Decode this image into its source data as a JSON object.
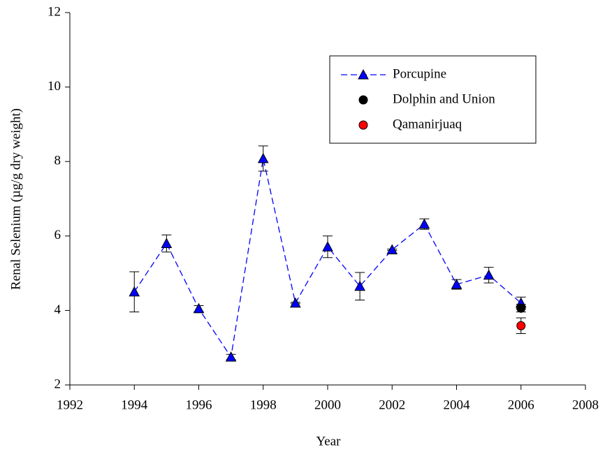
{
  "chart_data": {
    "type": "line",
    "xlabel": "Year",
    "ylabel": "Renal Selenium (µg/g dry weight)",
    "xlim": [
      1992,
      2008
    ],
    "xticks": [
      1992,
      1994,
      1996,
      1998,
      2000,
      2002,
      2004,
      2006,
      2008
    ],
    "ylim": [
      2,
      12
    ],
    "yticks": [
      2,
      4,
      6,
      8,
      10,
      12
    ],
    "legend": "upper right",
    "series": [
      {
        "name": "Porcupine",
        "color": "#0000ff",
        "marker": "triangle",
        "line": "dashed",
        "x": [
          1994,
          1995,
          1996,
          1997,
          1998,
          1999,
          2000,
          2001,
          2002,
          2003,
          2004,
          2005,
          2006
        ],
        "values": [
          4.5,
          5.8,
          4.05,
          2.75,
          8.08,
          4.2,
          5.71,
          4.65,
          5.63,
          6.32,
          4.7,
          4.95,
          4.2
        ],
        "errors": [
          0.54,
          0.23,
          0.08,
          0.07,
          0.34,
          0.02,
          0.29,
          0.37,
          0.02,
          0.14,
          0.13,
          0.21,
          0.16
        ]
      },
      {
        "name": "Dolphin and Union",
        "color": "#000000",
        "marker": "circle",
        "line": "none",
        "x": [
          2006
        ],
        "values": [
          4.06
        ],
        "errors": [
          0.1
        ]
      },
      {
        "name": "Qamanirjuaq",
        "color": "#ff0000",
        "marker": "circle",
        "line": "none",
        "x": [
          2006
        ],
        "values": [
          3.59
        ],
        "errors": [
          0.21
        ]
      }
    ]
  }
}
